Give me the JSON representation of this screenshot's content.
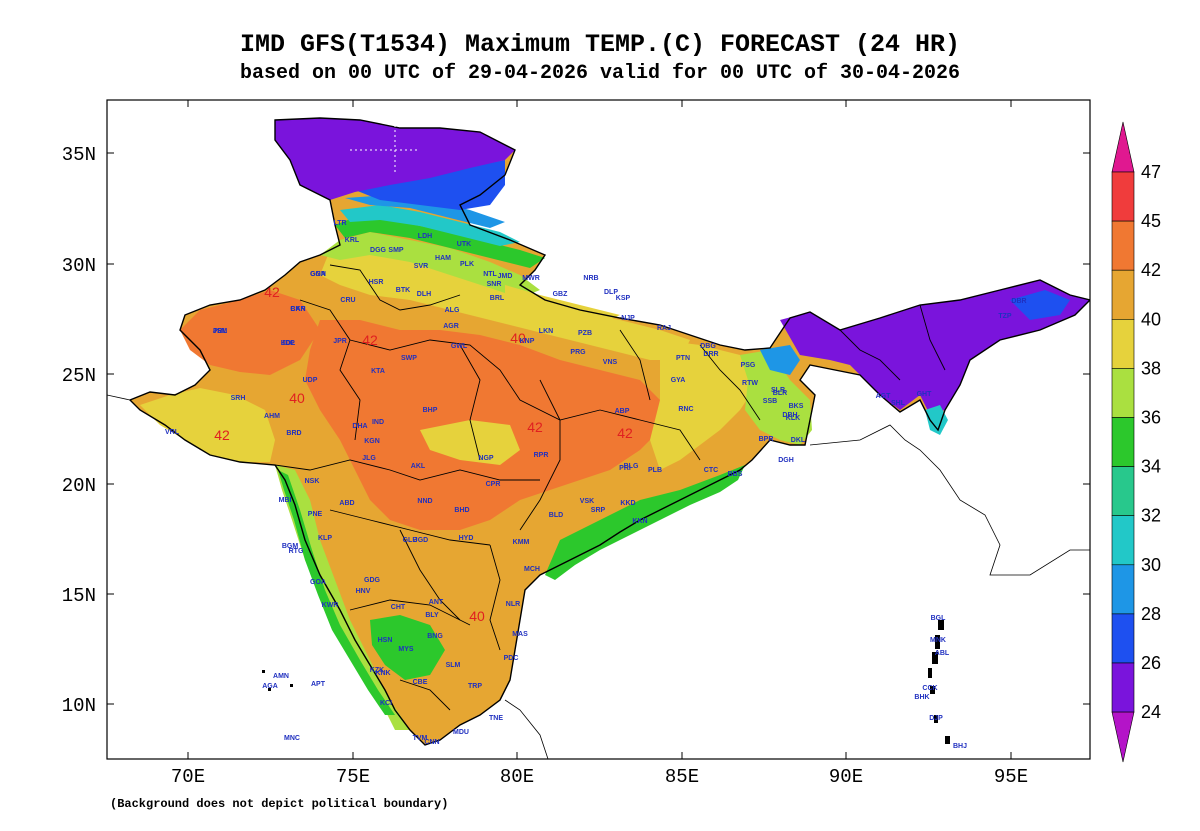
{
  "title_line1": "IMD GFS(T1534) Maximum TEMP.(C) FORECAST (24 HR)",
  "title_line2": "based on 00 UTC of 29-04-2026 valid for 00 UTC of 30-04-2026",
  "footnote": "(Background does not depict political boundary)",
  "x_ticks": [
    "70E",
    "75E",
    "80E",
    "85E",
    "90E",
    "95E"
  ],
  "y_ticks": [
    "35N",
    "30N",
    "25N",
    "20N",
    "15N",
    "10N"
  ],
  "colorbar": {
    "labels": [
      "47",
      "45",
      "42",
      "40",
      "38",
      "36",
      "34",
      "32",
      "30",
      "28",
      "26",
      "24"
    ],
    "colors": [
      "#e01890",
      "#f03c3c",
      "#f07832",
      "#e6a632",
      "#e6d23c",
      "#aae040",
      "#2cc82c",
      "#28c88c",
      "#22c8c8",
      "#1e96e6",
      "#1e50f0",
      "#7a14dc",
      "#b414c8"
    ]
  },
  "contour_labels": [
    "42",
    "42",
    "40",
    "42",
    "40",
    "42",
    "42",
    "40"
  ],
  "stations": [
    "GGN",
    "BKN",
    "JSM",
    "JDP",
    "CRU",
    "HSR",
    "BTK",
    "DLH",
    "ALG",
    "BRL",
    "LKN",
    "PZB",
    "NJP",
    "KNP",
    "PRG",
    "VNS",
    "AGR",
    "GWL",
    "JPR",
    "KTA",
    "SWP",
    "UDP",
    "SRH",
    "VRL",
    "BHP",
    "NGP",
    "RPR",
    "ABP",
    "RNC",
    "PTN",
    "GYA",
    "DBG",
    "AHM",
    "BRD",
    "DHA",
    "IND",
    "KGN",
    "AKL",
    "JLG",
    "NSK",
    "MBI",
    "PNE",
    "ABD",
    "NND",
    "CPR",
    "BHD",
    "JGD",
    "BLD",
    "SRP",
    "KKN",
    "PRI",
    "VSK",
    "KKD",
    "HYD",
    "KMM",
    "MCH",
    "GLB",
    "BGM",
    "KLP",
    "RTG",
    "GOA",
    "KWR",
    "HNV",
    "BLY",
    "ANT",
    "GDG",
    "CHT",
    "NLR",
    "MAS",
    "HSN",
    "MYS",
    "BNG",
    "KZK",
    "KCI",
    "CBE",
    "SLM",
    "TRP",
    "PDC",
    "MDU",
    "TVM",
    "TNE",
    "KNK",
    "CNN",
    "MNC",
    "AMN",
    "AGA",
    "APT",
    "BLR",
    "DBH",
    "DKL",
    "CTC",
    "BBS",
    "PLB",
    "BLG",
    "BPR",
    "DGH",
    "AGT",
    "SHL",
    "GHT",
    "TZP",
    "DBR",
    "PSG",
    "SLR",
    "BKS",
    "KLK",
    "SSB",
    "RTW",
    "DRR",
    "MNK",
    "ABL",
    "CCK",
    "DJP",
    "BHJ",
    "JMN",
    "NTL",
    "UTK",
    "SMP",
    "SVR",
    "DGG",
    "KRL",
    "LTR",
    "LDH",
    "PLK",
    "SNR",
    "HAM",
    "JMD",
    "MWR",
    "GBZ",
    "NRB",
    "DLP",
    "KSP",
    "RAJ",
    "BGL",
    "BHK",
    "GNA",
    "CAR",
    "PBL",
    "KDL"
  ]
}
